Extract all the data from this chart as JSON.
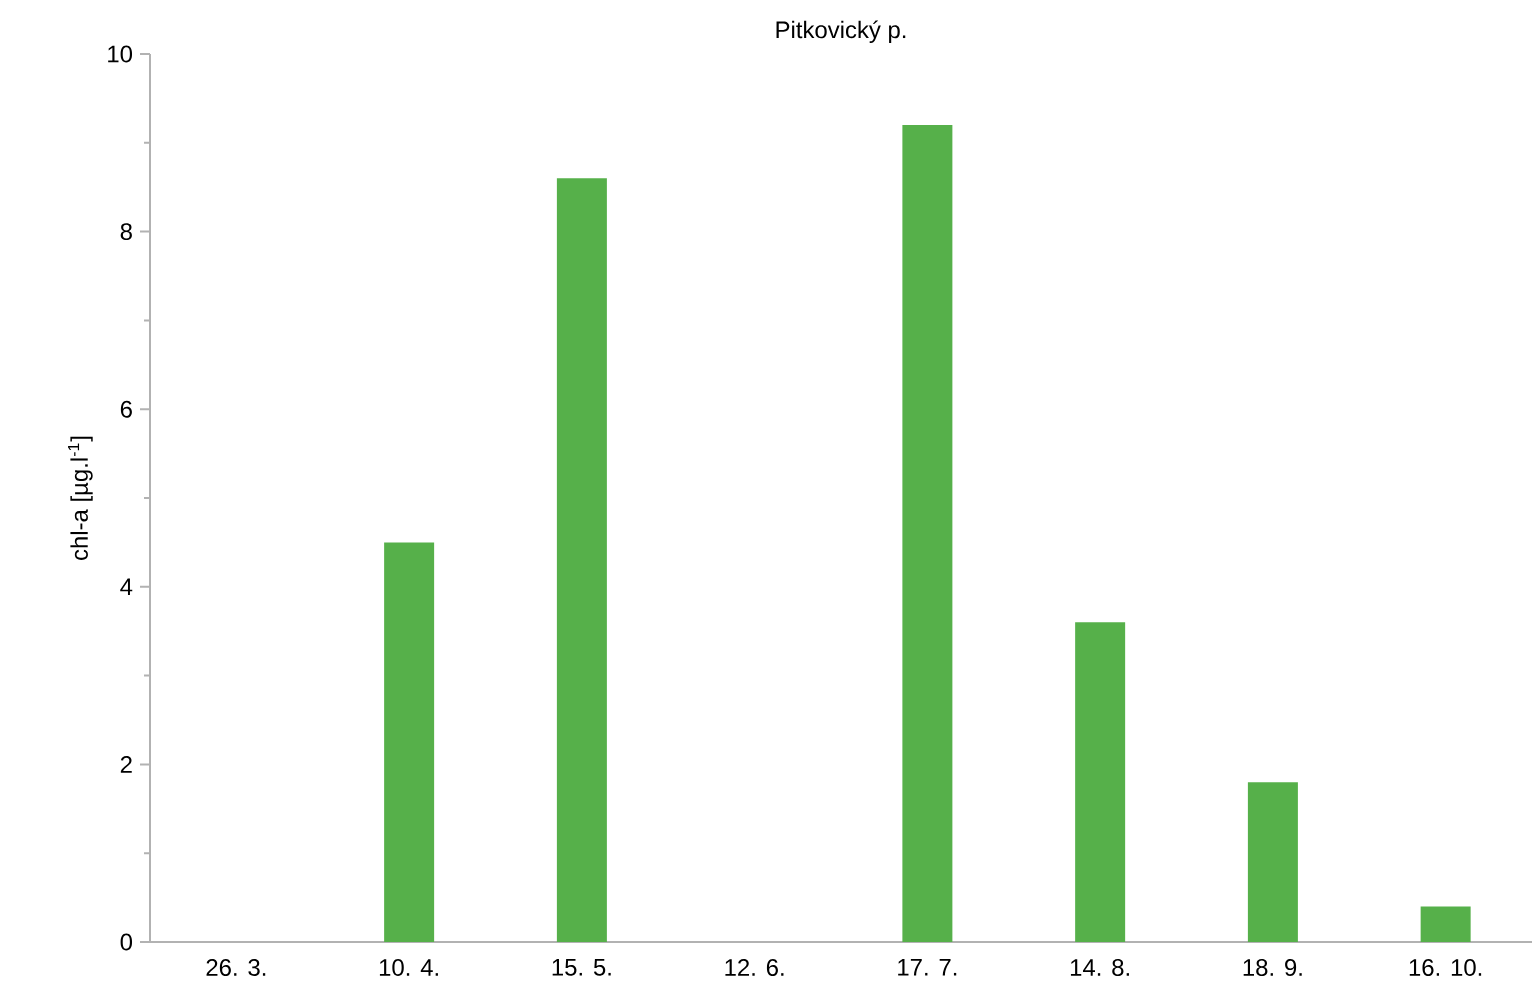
{
  "chart_data": {
    "type": "bar",
    "title": "Pitkovický p.",
    "ylabel": "chl-a [µg.l$^{-1}$]",
    "categories": [
      "26. 3.",
      "10. 4.",
      "15. 5.",
      "12. 6.",
      "17. 7.",
      "14. 8.",
      "18. 9.",
      "16. 10."
    ],
    "values": [
      null,
      4.5,
      8.6,
      null,
      9.2,
      3.6,
      1.8,
      0.4
    ],
    "color": "#56b04a",
    "ylim": [
      0,
      10
    ],
    "yticks": [
      0,
      2,
      4,
      6,
      8,
      10
    ]
  }
}
